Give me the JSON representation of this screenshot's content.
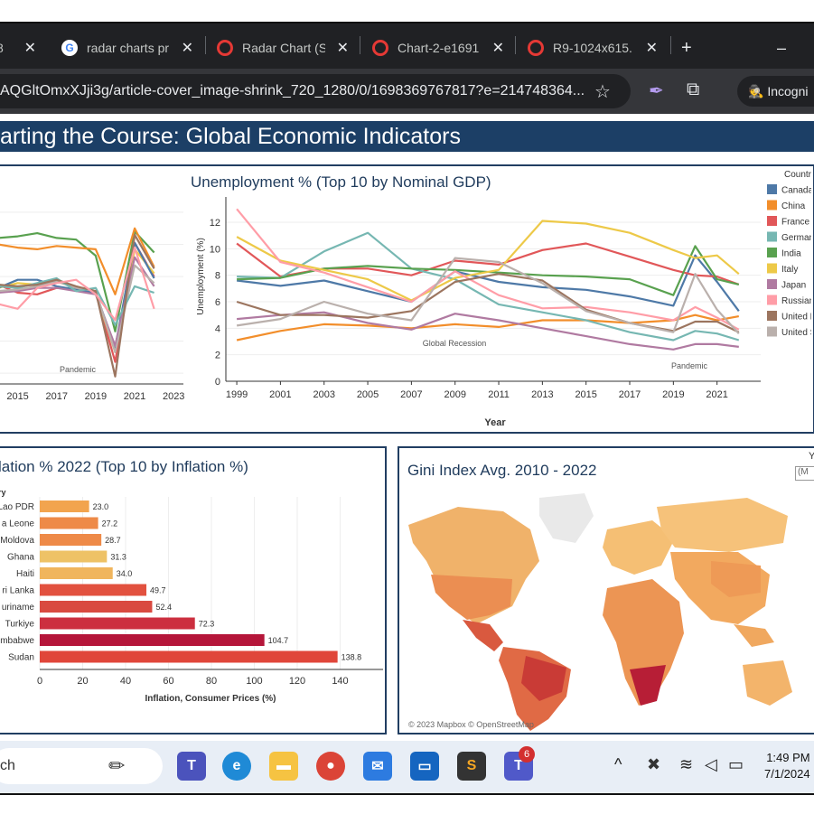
{
  "browser": {
    "tabs": [
      {
        "label": "8",
        "icon": "favicon-icon"
      },
      {
        "label": "radar charts pr",
        "icon": "google-icon"
      },
      {
        "label": "Radar Chart (S",
        "icon": "favicon-red-icon"
      },
      {
        "label": "Chart-2-e1691",
        "icon": "favicon-red-icon"
      },
      {
        "label": "R9-1024x615.",
        "icon": "favicon-red-icon"
      }
    ],
    "new_tab": "+",
    "minimize": "–",
    "url": "AQGltOmxXJji3g/article-cover_image-shrink_720_1280/0/1698369767817?e=214748364...",
    "profile_label": "Incogni"
  },
  "dashboard": {
    "title": "arting the Course: Global Economic Indicators"
  },
  "line_chart": {
    "title": "Unemployment % (Top 10 by Nominal GDP)",
    "ylabel": "Unemployment (%)",
    "xlabel": "Year",
    "legend_title": "Countr",
    "annotations": {
      "recession": "Global Recession",
      "pandemic": "Pandemic"
    }
  },
  "left_line_chart": {
    "annotation": "Pandemic",
    "x_ticks": [
      "2015",
      "2017",
      "2019",
      "2021",
      "2023"
    ]
  },
  "bar_chart": {
    "title": "lation % 2022 (Top 10 by Inflation %)",
    "category_header": "ry",
    "xlabel": "Inflation, Consumer Prices (%)"
  },
  "map": {
    "title": "Gini Index Avg. 2010 - 2022",
    "attribution": "© 2023 Mapbox  © OpenStreetMap",
    "side_label": "Y",
    "side_box": "(M"
  },
  "taskbar": {
    "search": "ch",
    "teams_badge": "6",
    "clock_time": "1:49 PM",
    "clock_date": "7/1/2024"
  },
  "chart_data": [
    {
      "type": "line",
      "title": "Unemployment % (Top 10 by Nominal GDP)",
      "xlabel": "Year",
      "ylabel": "Unemployment (%)",
      "x": [
        1999,
        2001,
        2003,
        2005,
        2007,
        2009,
        2011,
        2013,
        2015,
        2017,
        2019,
        2020,
        2021,
        2022
      ],
      "x_ticks": [
        1999,
        2001,
        2003,
        2005,
        2007,
        2009,
        2011,
        2013,
        2015,
        2017,
        2019,
        2021
      ],
      "y_ticks": [
        0,
        2,
        4,
        6,
        8,
        10,
        12
      ],
      "ylim": [
        0,
        13.5
      ],
      "xlim": [
        1998.5,
        2023
      ],
      "legend": "right",
      "series": [
        {
          "name": "Canada",
          "color": "#4e79a7",
          "values": [
            7.6,
            7.2,
            7.6,
            6.8,
            6.0,
            8.3,
            7.5,
            7.1,
            6.9,
            6.4,
            5.7,
            9.5,
            7.5,
            5.3
          ]
        },
        {
          "name": "China",
          "color": "#f28e2b",
          "values": [
            3.1,
            3.8,
            4.3,
            4.2,
            4.0,
            4.3,
            4.1,
            4.6,
            4.6,
            4.4,
            4.6,
            5.0,
            4.6,
            4.9
          ]
        },
        {
          "name": "France",
          "color": "#e15759",
          "values": [
            10.4,
            7.9,
            8.5,
            8.5,
            8.0,
            9.1,
            8.8,
            9.9,
            10.4,
            9.4,
            8.4,
            8.0,
            7.9,
            7.3
          ]
        },
        {
          "name": "Germany",
          "color": "#76b7b2",
          "values": [
            7.9,
            7.8,
            9.8,
            11.2,
            8.5,
            7.7,
            5.8,
            5.2,
            4.6,
            3.7,
            3.1,
            3.8,
            3.6,
            3.1
          ]
        },
        {
          "name": "India",
          "color": "#59a14f",
          "values": [
            7.7,
            7.8,
            8.5,
            8.7,
            8.5,
            8.4,
            8.2,
            8.0,
            7.9,
            7.7,
            6.5,
            10.2,
            7.7,
            7.3
          ]
        },
        {
          "name": "Italy",
          "color": "#edc948",
          "values": [
            10.9,
            9.1,
            8.4,
            7.7,
            6.1,
            7.8,
            8.4,
            12.1,
            11.9,
            11.2,
            9.9,
            9.3,
            9.5,
            8.1
          ]
        },
        {
          "name": "Japan",
          "color": "#b07aa1",
          "values": [
            4.7,
            5.0,
            5.2,
            4.4,
            3.9,
            5.1,
            4.6,
            4.0,
            3.4,
            2.8,
            2.4,
            2.8,
            2.8,
            2.6
          ]
        },
        {
          "name": "Russian",
          "color": "#ff9da7",
          "values": [
            13.0,
            9.0,
            8.2,
            7.1,
            6.0,
            8.3,
            6.5,
            5.5,
            5.6,
            5.2,
            4.6,
            5.6,
            4.8,
            3.9
          ]
        },
        {
          "name": "United K",
          "color": "#9c755f",
          "values": [
            6.0,
            5.0,
            5.0,
            4.8,
            5.3,
            7.5,
            8.1,
            7.6,
            5.4,
            4.4,
            3.8,
            4.5,
            4.5,
            3.7
          ]
        },
        {
          "name": "United S",
          "color": "#bab0ac",
          "values": [
            4.2,
            4.7,
            6.0,
            5.1,
            4.6,
            9.3,
            9.0,
            7.4,
            5.3,
            4.4,
            3.7,
            8.1,
            5.4,
            3.6
          ]
        }
      ]
    },
    {
      "type": "line",
      "x": [
        2014,
        2015,
        2016,
        2017,
        2018,
        2019,
        2020,
        2021,
        2022
      ],
      "x_ticks": [
        2015,
        2017,
        2019,
        2021,
        2023
      ],
      "xlim": [
        2014,
        2023.5
      ],
      "ylim": [
        -2.5,
        8.5
      ],
      "series": [
        {
          "color": "#59a14f",
          "values": [
            6.4,
            6.5,
            6.7,
            6.4,
            6.3,
            5.3,
            0.6,
            6.8,
            5.5
          ]
        },
        {
          "color": "#f28e2b",
          "values": [
            6.0,
            5.8,
            5.7,
            5.9,
            5.8,
            5.7,
            2.9,
            7.0,
            4.6
          ]
        },
        {
          "color": "#e15759",
          "values": [
            3.5,
            3.0,
            2.9,
            3.3,
            3.2,
            3.0,
            -1.3,
            6.1,
            4.0
          ]
        },
        {
          "color": "#edc948",
          "values": [
            3.3,
            3.6,
            3.5,
            3.7,
            3.3,
            3.0,
            -0.7,
            5.7,
            4.2
          ]
        },
        {
          "color": "#4e79a7",
          "values": [
            3.3,
            3.8,
            3.8,
            3.4,
            3.2,
            3.0,
            -0.4,
            6.1,
            3.9
          ]
        },
        {
          "color": "#b07aa1",
          "values": [
            3.0,
            3.1,
            3.3,
            3.3,
            3.1,
            2.9,
            -0.3,
            5.2,
            3.4
          ]
        },
        {
          "color": "#bab0ac",
          "values": [
            3.1,
            3.2,
            3.4,
            3.7,
            3.3,
            3.1,
            -0.7,
            4.7,
            3.6
          ]
        },
        {
          "color": "#76b7b2",
          "values": [
            3.4,
            3.3,
            3.6,
            3.9,
            3.1,
            3.3,
            1.0,
            3.4,
            3.0
          ]
        },
        {
          "color": "#9c755f",
          "values": [
            3.5,
            3.4,
            3.5,
            3.8,
            3.4,
            3.1,
            -2.2,
            6.6,
            4.5
          ]
        },
        {
          "color": "#ff9da7",
          "values": [
            2.3,
            2.0,
            3.3,
            3.6,
            3.8,
            2.9,
            1.3,
            5.8,
            2.0
          ]
        }
      ],
      "annotations": [
        "Pandemic"
      ]
    },
    {
      "type": "bar",
      "title": "lation % 2022 (Top 10 by Inflation %)",
      "xlabel": "Inflation, Consumer Prices (%)",
      "categories": [
        "Lao PDR",
        "a Leone",
        "Moldova",
        "Ghana",
        "Haiti",
        "ri Lanka",
        "uriname",
        "Turkiye",
        "mbabwe",
        "Sudan"
      ],
      "values": [
        23.0,
        27.2,
        28.7,
        31.3,
        34.0,
        49.7,
        52.4,
        72.3,
        104.7,
        138.8
      ],
      "colors": [
        "#f2a44e",
        "#ee8a48",
        "#ee8a48",
        "#eec266",
        "#f0b55d",
        "#e2513f",
        "#d94a40",
        "#cc2f3f",
        "#b5163a",
        "#e0463a"
      ],
      "x_ticks": [
        0,
        20,
        40,
        60,
        80,
        100,
        120,
        140
      ],
      "xlim": [
        0,
        160
      ]
    }
  ]
}
